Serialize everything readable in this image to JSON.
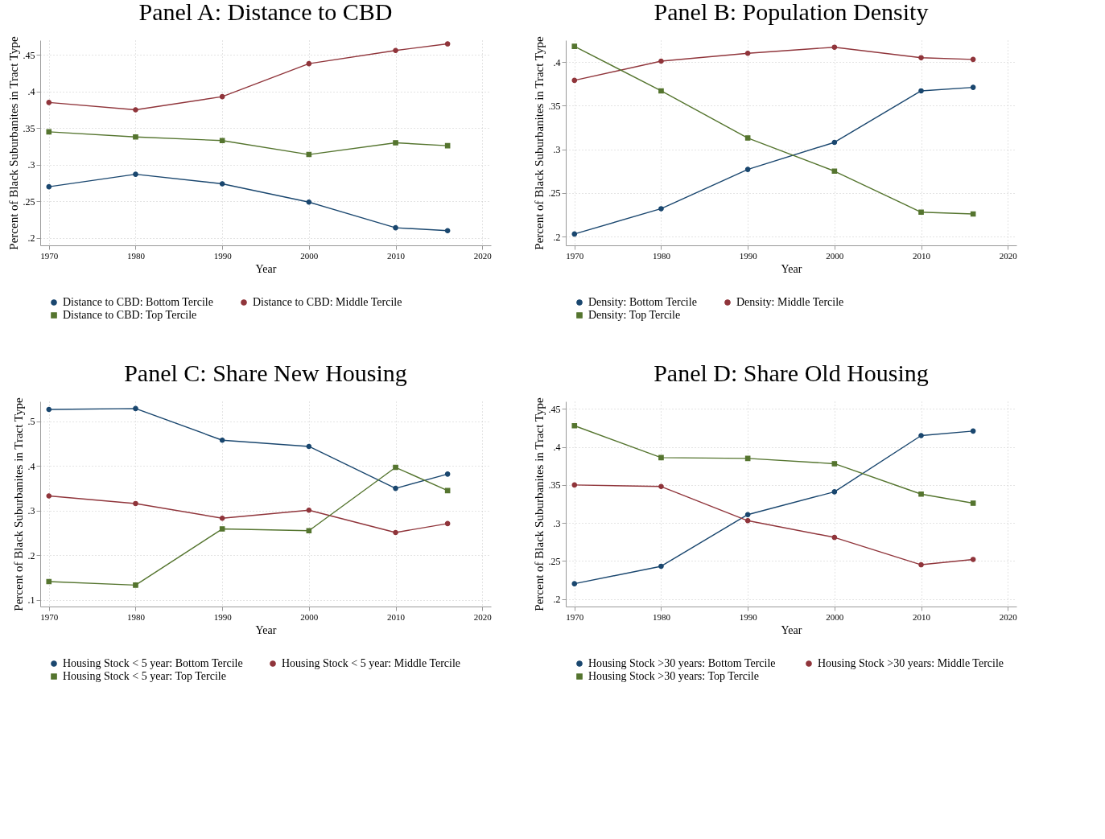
{
  "chart_data": [
    {
      "type": "line",
      "title": "Panel A: Distance to CBD",
      "xlabel": "Year",
      "ylabel": "Percent of Black Suburbanites in Tract Type",
      "x": [
        1970,
        1980,
        1990,
        2000,
        2010,
        2016
      ],
      "xlim": [
        1969,
        2021
      ],
      "xticks": [
        1970,
        1980,
        1990,
        2000,
        2010,
        2020
      ],
      "ylim": [
        0.19,
        0.47
      ],
      "yticks": [
        {
          "value": 0.2,
          "label": ".2"
        },
        {
          "value": 0.25,
          "label": ".25"
        },
        {
          "value": 0.3,
          "label": ".3"
        },
        {
          "value": 0.35,
          "label": ".35"
        },
        {
          "value": 0.4,
          "label": ".4"
        },
        {
          "value": 0.45,
          "label": ".45"
        }
      ],
      "grid": true,
      "legend": "bottom",
      "series": [
        {
          "name": "Distance to CBD: Bottom Tercile",
          "color": "#1a476f",
          "marker": "circle",
          "values": [
            0.27,
            0.287,
            0.274,
            0.249,
            0.214,
            0.21
          ]
        },
        {
          "name": "Distance to CBD: Middle Tercile",
          "color": "#90353b",
          "marker": "circle",
          "values": [
            0.385,
            0.375,
            0.393,
            0.438,
            0.456,
            0.465
          ]
        },
        {
          "name": "Distance to CBD: Top Tercile",
          "color": "#55752f",
          "marker": "square",
          "values": [
            0.345,
            0.338,
            0.333,
            0.314,
            0.33,
            0.326
          ]
        }
      ]
    },
    {
      "type": "line",
      "title": "Panel B: Population Density",
      "xlabel": "Year",
      "ylabel": "Percent of Black Suburbanites in Tract Type",
      "x": [
        1970,
        1980,
        1990,
        2000,
        2010,
        2016
      ],
      "xlim": [
        1969,
        2021
      ],
      "xticks": [
        1970,
        1980,
        1990,
        2000,
        2010,
        2020
      ],
      "ylim": [
        0.19,
        0.425
      ],
      "yticks": [
        {
          "value": 0.2,
          "label": ".2"
        },
        {
          "value": 0.25,
          "label": ".25"
        },
        {
          "value": 0.3,
          "label": ".3"
        },
        {
          "value": 0.35,
          "label": ".35"
        },
        {
          "value": 0.4,
          "label": ".4"
        }
      ],
      "grid": true,
      "legend": "bottom",
      "series": [
        {
          "name": "Density: Bottom Tercile",
          "color": "#1a476f",
          "marker": "circle",
          "values": [
            0.203,
            0.232,
            0.277,
            0.308,
            0.367,
            0.371
          ]
        },
        {
          "name": "Density: Middle Tercile",
          "color": "#90353b",
          "marker": "circle",
          "values": [
            0.379,
            0.401,
            0.41,
            0.417,
            0.405,
            0.403
          ]
        },
        {
          "name": "Density: Top Tercile",
          "color": "#55752f",
          "marker": "square",
          "values": [
            0.418,
            0.367,
            0.313,
            0.275,
            0.228,
            0.226
          ]
        }
      ]
    },
    {
      "type": "line",
      "title": "Panel C: Share New Housing",
      "xlabel": "Year",
      "ylabel": "Percent of Black Suburbanites in Tract Type",
      "x": [
        1970,
        1980,
        1990,
        2000,
        2010,
        2016
      ],
      "xlim": [
        1969,
        2021
      ],
      "xticks": [
        1970,
        1980,
        1990,
        2000,
        2010,
        2020
      ],
      "ylim": [
        0.085,
        0.545
      ],
      "yticks": [
        {
          "value": 0.1,
          "label": ".1"
        },
        {
          "value": 0.2,
          "label": ".2"
        },
        {
          "value": 0.3,
          "label": ".3"
        },
        {
          "value": 0.4,
          "label": ".4"
        },
        {
          "value": 0.5,
          "label": ".5"
        }
      ],
      "grid": true,
      "legend": "bottom",
      "series": [
        {
          "name": "Housing Stock < 5 year: Bottom Tercile",
          "color": "#1a476f",
          "marker": "circle",
          "values": [
            0.527,
            0.529,
            0.458,
            0.444,
            0.35,
            0.382
          ]
        },
        {
          "name": "Housing Stock < 5 year: Middle Tercile",
          "color": "#90353b",
          "marker": "circle",
          "values": [
            0.333,
            0.316,
            0.283,
            0.301,
            0.251,
            0.271
          ]
        },
        {
          "name": "Housing Stock < 5 year: Top Tercile",
          "color": "#55752f",
          "marker": "square",
          "values": [
            0.141,
            0.133,
            0.259,
            0.255,
            0.397,
            0.345
          ]
        }
      ]
    },
    {
      "type": "line",
      "title": "Panel D: Share Old Housing",
      "xlabel": "Year",
      "ylabel": "Percent of Black Suburbanites in Tract Type",
      "x": [
        1970,
        1980,
        1990,
        2000,
        2010,
        2016
      ],
      "xlim": [
        1969,
        2021
      ],
      "xticks": [
        1970,
        1980,
        1990,
        2000,
        2010,
        2020
      ],
      "ylim": [
        0.19,
        0.46
      ],
      "yticks": [
        {
          "value": 0.2,
          "label": ".2"
        },
        {
          "value": 0.25,
          "label": ".25"
        },
        {
          "value": 0.3,
          "label": ".3"
        },
        {
          "value": 0.35,
          "label": ".35"
        },
        {
          "value": 0.4,
          "label": ".4"
        },
        {
          "value": 0.45,
          "label": ".45"
        }
      ],
      "grid": true,
      "legend": "bottom",
      "series": [
        {
          "name": "Housing Stock >30 years:  Bottom Tercile",
          "color": "#1a476f",
          "marker": "circle",
          "values": [
            0.22,
            0.243,
            0.311,
            0.341,
            0.415,
            0.421
          ]
        },
        {
          "name": "Housing Stock >30 years: Middle Tercile",
          "color": "#90353b",
          "marker": "circle",
          "values": [
            0.35,
            0.348,
            0.303,
            0.281,
            0.245,
            0.252
          ]
        },
        {
          "name": "Housing Stock >30 years: Top Tercile",
          "color": "#55752f",
          "marker": "square",
          "values": [
            0.428,
            0.386,
            0.385,
            0.378,
            0.338,
            0.326
          ]
        }
      ]
    }
  ]
}
